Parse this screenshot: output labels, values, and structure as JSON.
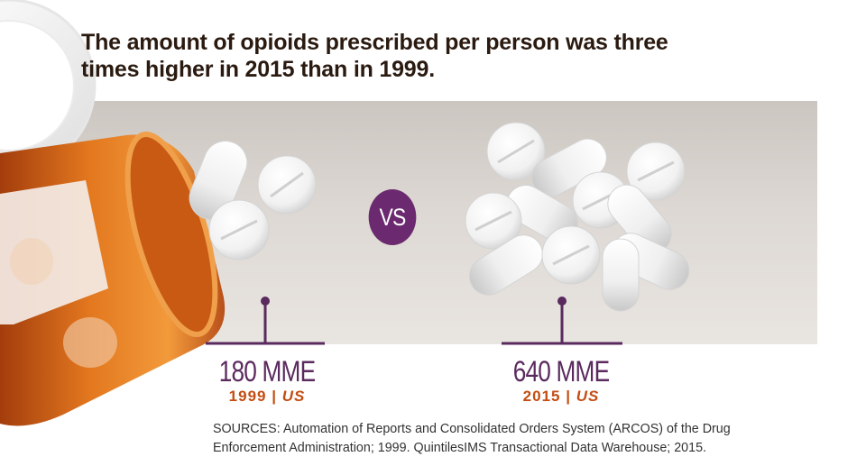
{
  "title": "The amount of opioids prescribed per person was three times higher in 2015 than in 1999.",
  "vs_label": "VS",
  "left": {
    "value": "180 MME",
    "year": "1999",
    "separator": "|",
    "region": "US"
  },
  "right": {
    "value": "640 MME",
    "year": "2015",
    "separator": "|",
    "region": "US"
  },
  "sources": "SOURCES: Automation of Reports and Consolidated Orders System (ARCOS) of the Drug Enforcement Administration; 1999. QuintilesIMS Transactional Data Warehouse; 2015.",
  "colors": {
    "title": "#2a1a10",
    "accent_purple": "#6b2a6f",
    "accent_orange": "#c44d12",
    "band": "#d6d0cb",
    "bottle": "#d9641a"
  }
}
